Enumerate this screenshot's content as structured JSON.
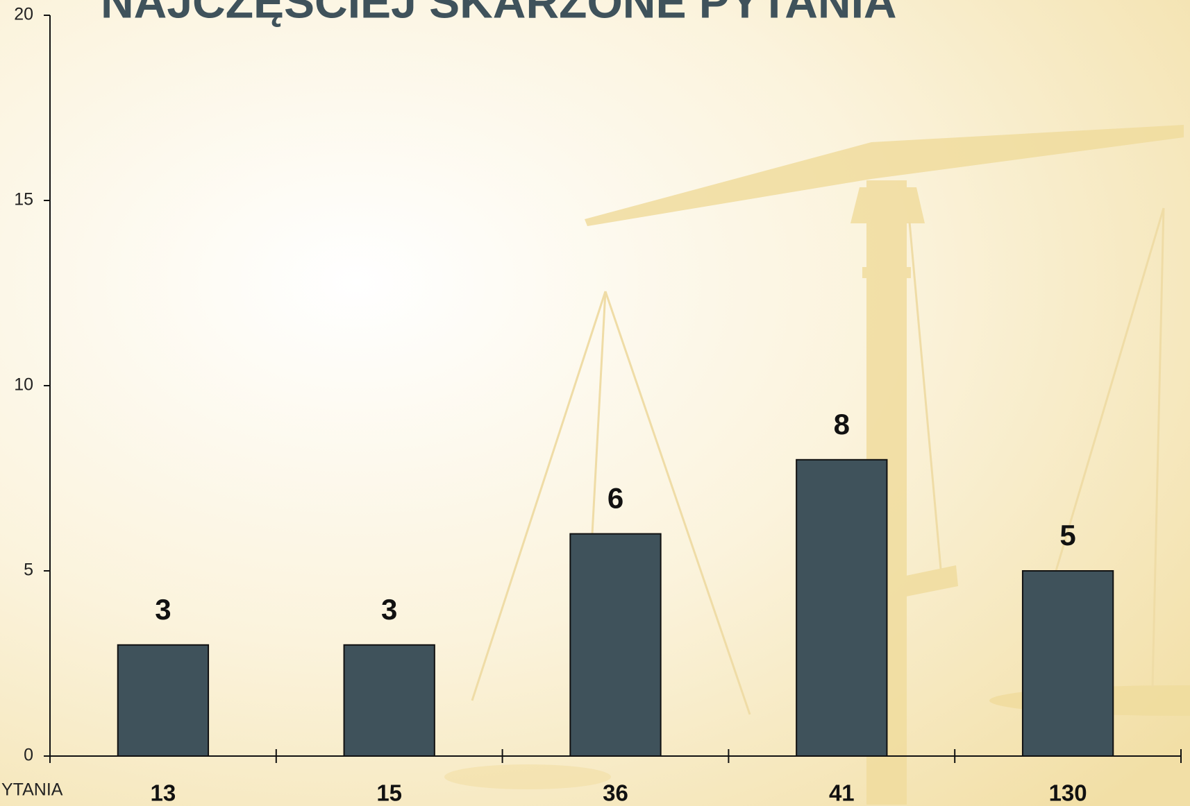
{
  "chart_data": {
    "type": "bar",
    "title": "NAJCZĘŚCIEJ SKARŻONE PYTANIA",
    "x_label": "YTANIA",
    "categories": [
      "13",
      "15",
      "36",
      "41",
      "130"
    ],
    "values": [
      3,
      3,
      6,
      8,
      5
    ],
    "color": "#3f525b",
    "ylim": [
      0,
      20
    ],
    "yticks": [
      0,
      5,
      10,
      15,
      20
    ],
    "grid": false
  }
}
